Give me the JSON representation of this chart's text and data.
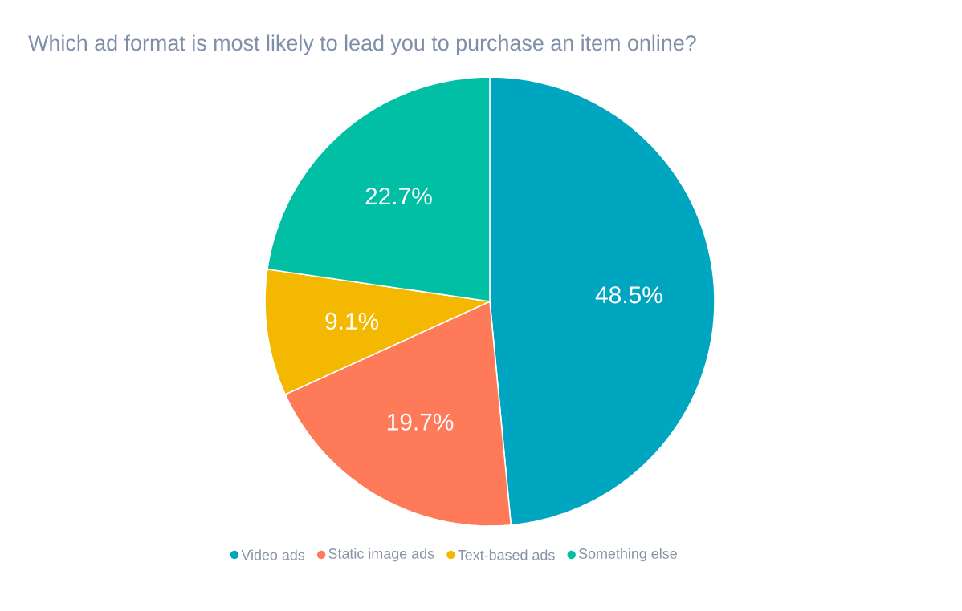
{
  "chart_data": {
    "type": "pie",
    "title": "Which ad format is most likely to lead you to purchase an item online?",
    "categories": [
      "Video ads",
      "Static image ads",
      "Text-based ads",
      "Something else"
    ],
    "values": [
      48.5,
      19.7,
      9.1,
      22.7
    ],
    "value_labels": [
      "48.5%",
      "19.7%",
      "9.1%",
      "22.7%"
    ],
    "colors": [
      "#00a5c0",
      "#ff7a59",
      "#f5b800",
      "#00bfa5"
    ],
    "legend": "bottom"
  }
}
